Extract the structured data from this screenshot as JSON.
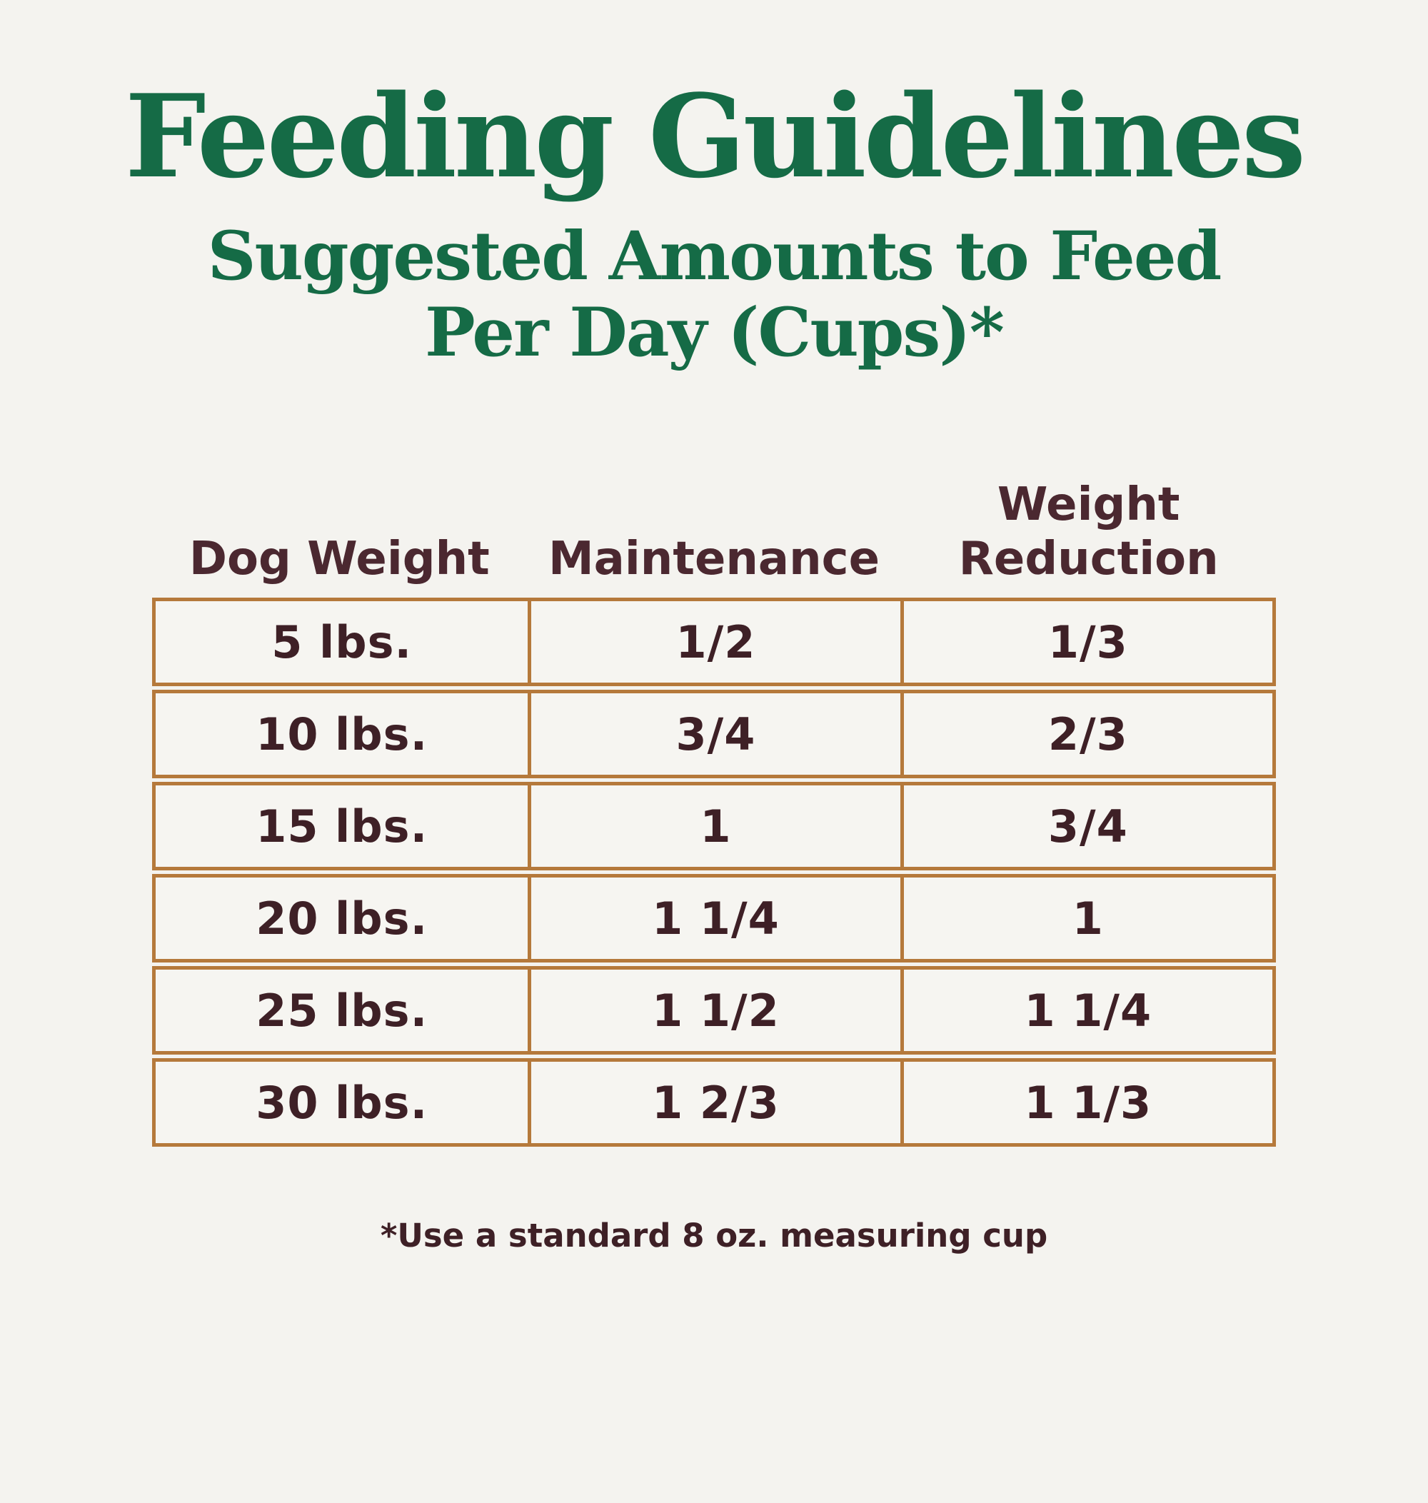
{
  "page": {
    "title": "Feeding Guidelines",
    "subtitle_line1": "Suggested Amounts to Feed",
    "subtitle_line2": "Per Day (Cups)*",
    "footnote": "*Use a standard 8 oz. measuring cup"
  },
  "table": {
    "columns": [
      "Dog Weight",
      "Maintenance",
      "Weight Reduction"
    ],
    "rows": [
      {
        "dog_weight": "5 lbs.",
        "maintenance": "1/2",
        "weight_reduction": "1/3"
      },
      {
        "dog_weight": "10 lbs.",
        "maintenance": "3/4",
        "weight_reduction": "2/3"
      },
      {
        "dog_weight": "15 lbs.",
        "maintenance": "1",
        "weight_reduction": "3/4"
      },
      {
        "dog_weight": "20 lbs.",
        "maintenance": "1 1/4",
        "weight_reduction": "1"
      },
      {
        "dog_weight": "25 lbs.",
        "maintenance": "1 1/2",
        "weight_reduction": "1 1/4"
      },
      {
        "dog_weight": "30 lbs.",
        "maintenance": "1 2/3",
        "weight_reduction": "1 1/3"
      }
    ]
  },
  "colors": {
    "title_green": "#156b46",
    "header_text": "#4b2830",
    "cell_text": "#3e2026",
    "table_border": "#b5793b",
    "background": "#f4f3ef",
    "cell_background": "#f6f5f1"
  },
  "chart_data": {
    "type": "table",
    "title": "Feeding Guidelines",
    "subtitle": "Suggested Amounts to Feed Per Day (Cups)*",
    "columns": [
      "Dog Weight",
      "Maintenance",
      "Weight Reduction"
    ],
    "rows": [
      [
        "5 lbs.",
        "1/2",
        "1/3"
      ],
      [
        "10 lbs.",
        "3/4",
        "2/3"
      ],
      [
        "15 lbs.",
        "1",
        "3/4"
      ],
      [
        "20 lbs.",
        "1 1/4",
        "1"
      ],
      [
        "25 lbs.",
        "1 1/2",
        "1 1/4"
      ],
      [
        "30 lbs.",
        "1 2/3",
        "1 1/3"
      ]
    ],
    "units": "cups per day",
    "footnote": "*Use a standard 8 oz. measuring cup"
  }
}
